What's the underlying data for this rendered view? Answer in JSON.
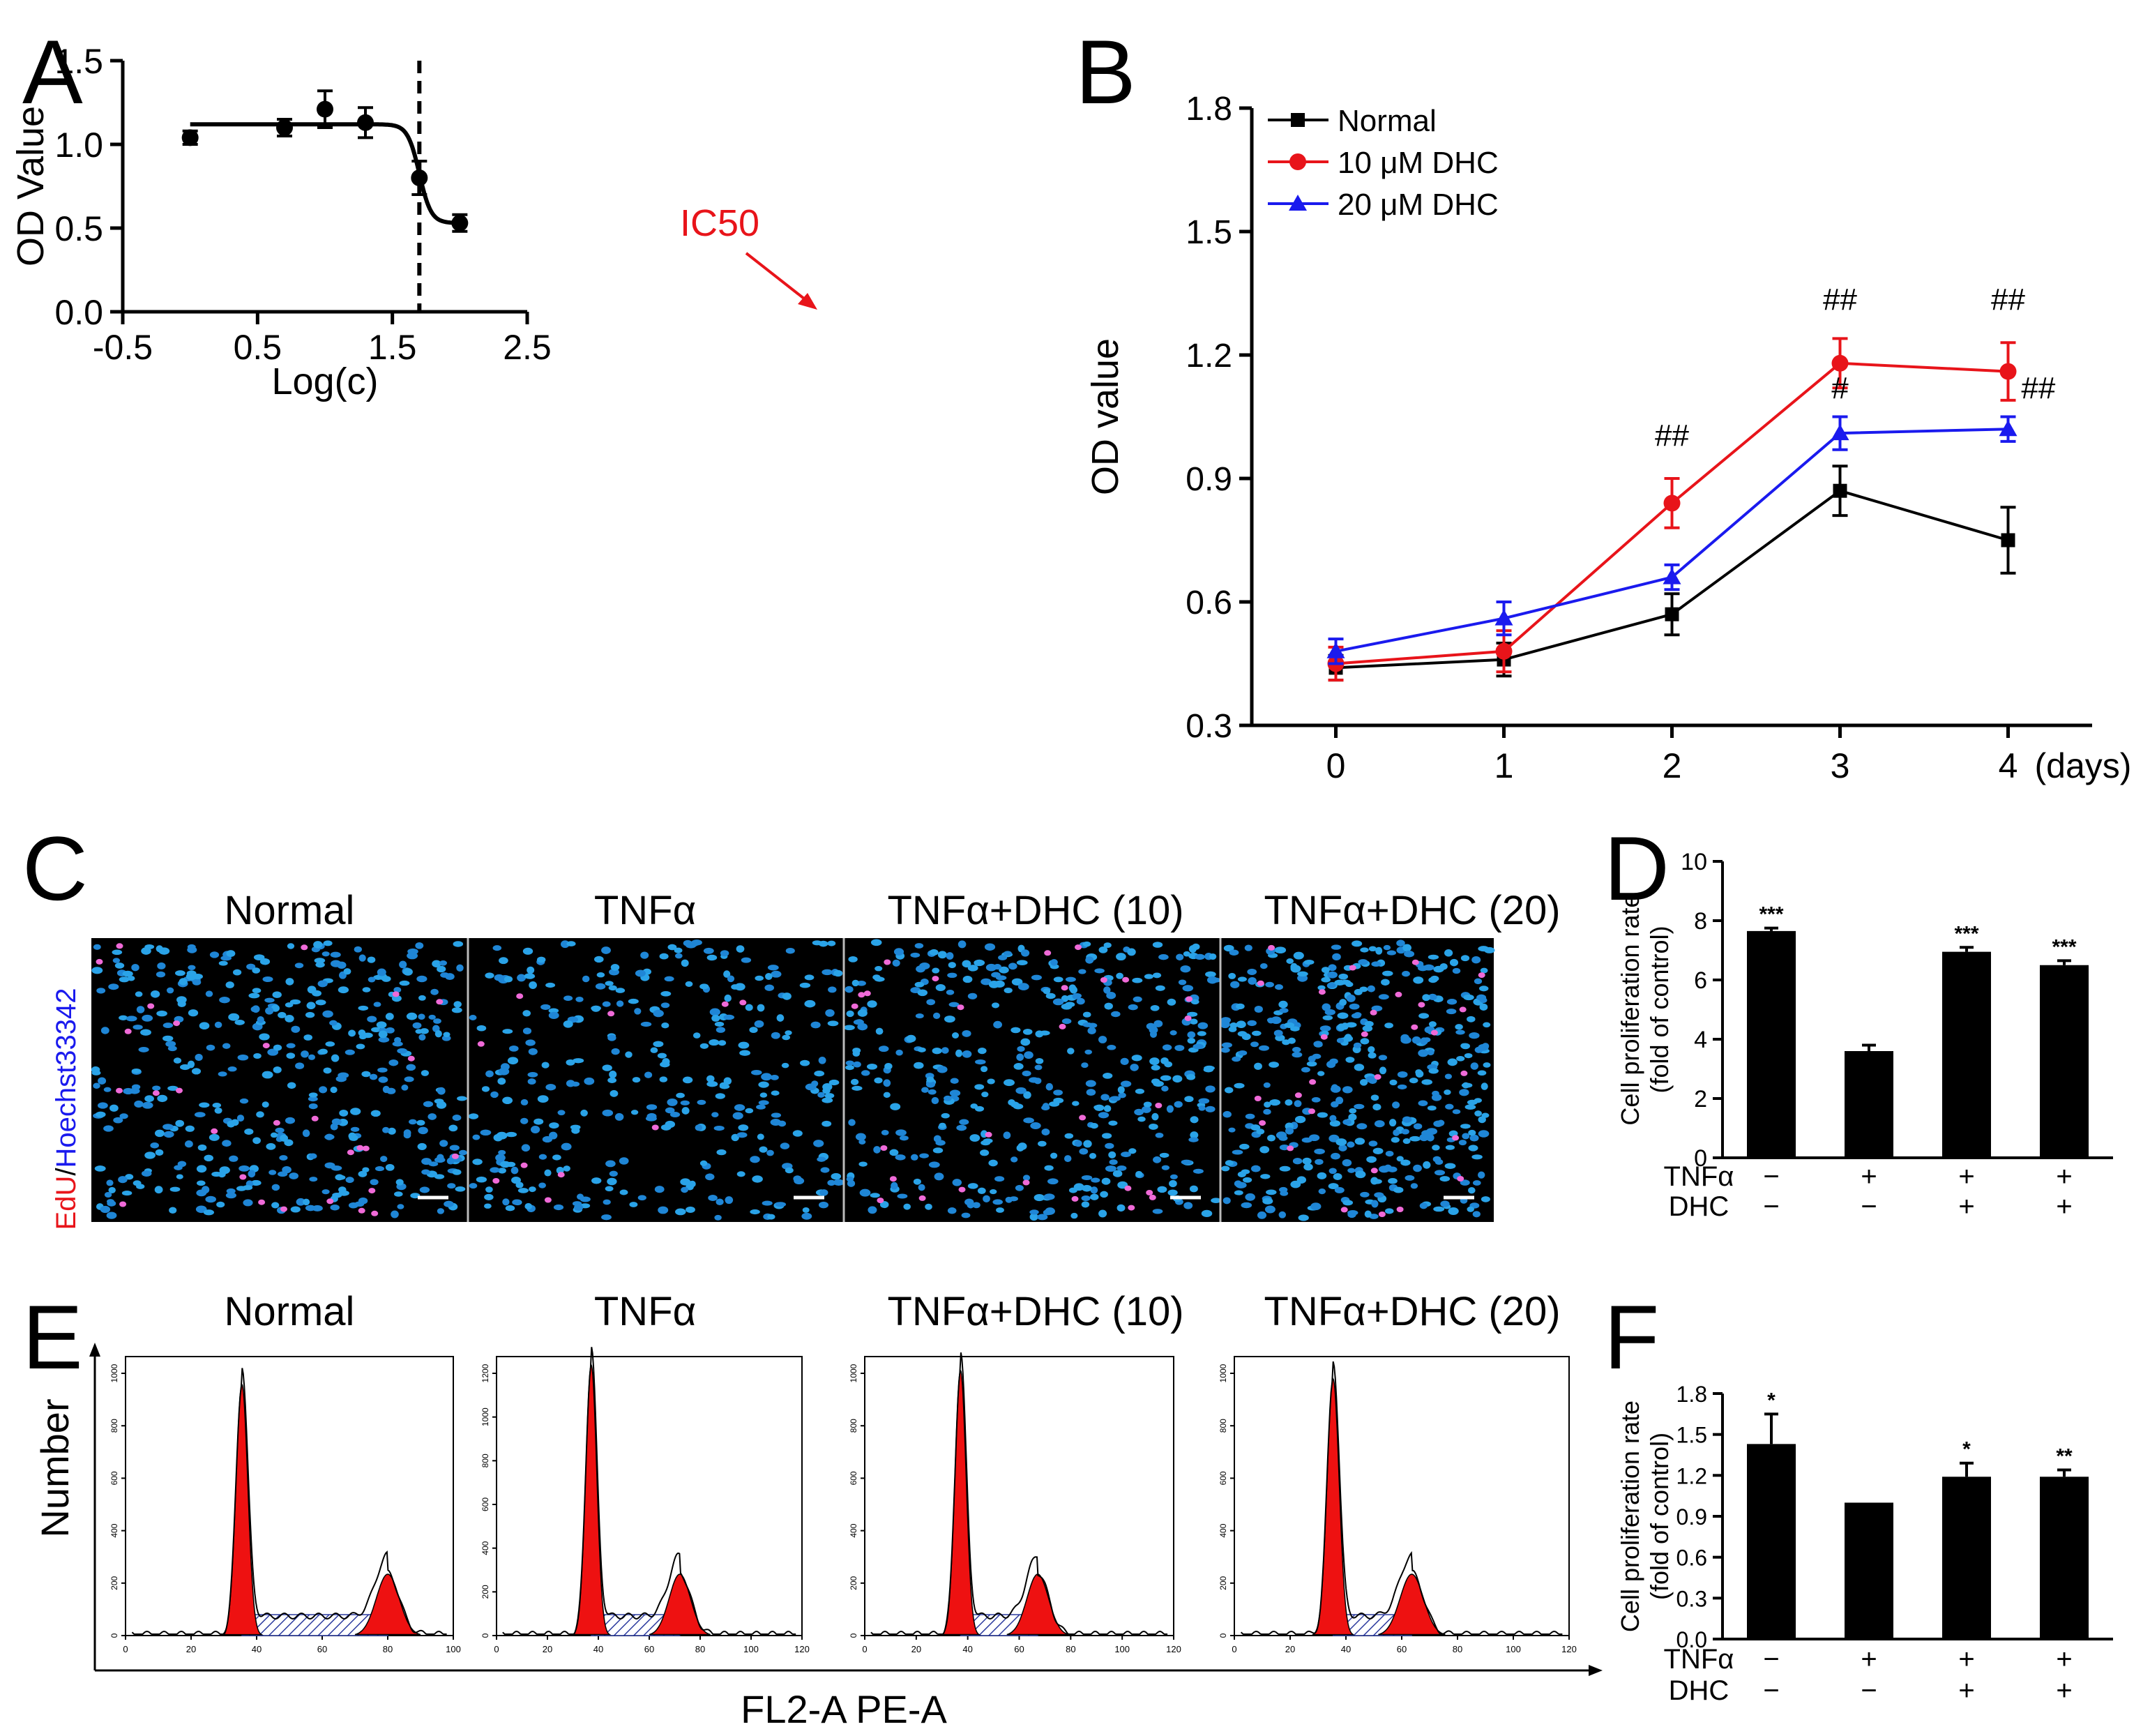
{
  "panel_letters": [
    "A",
    "B",
    "C",
    "D",
    "E",
    "F"
  ],
  "panel_c": {
    "titles": [
      "Normal",
      "TNFα",
      "TNFα+DHC (10)",
      "TNFα+DHC (20)"
    ],
    "ylabel_red": "EdU",
    "ylabel_sep": "/",
    "ylabel_blue": "Hoechst33342"
  },
  "panel_e": {
    "titles": [
      "Normal",
      "TNFα",
      "TNFα+DHC (10)",
      "TNFα+DHC (20)"
    ],
    "ylabel": "Number",
    "xlabel": "FL2-A PE-A",
    "hist_x_ticks": [
      [
        "0",
        "20",
        "40",
        "60",
        "80",
        "100"
      ],
      [
        "0",
        "20",
        "40",
        "60",
        "80",
        "100",
        "120"
      ],
      [
        "0",
        "20",
        "40",
        "60",
        "80",
        "100",
        "120"
      ],
      [
        "0",
        "20",
        "40",
        "60",
        "80",
        "100",
        "120"
      ]
    ],
    "hist_y_ticks": [
      [
        "0",
        "200",
        "400",
        "600",
        "800",
        "1000"
      ],
      [
        "0",
        "200",
        "400",
        "600",
        "800",
        "1000",
        "1200"
      ],
      [
        "0",
        "200",
        "400",
        "600",
        "800",
        "1000"
      ],
      [
        "0",
        "200",
        "400",
        "600",
        "800",
        "1000"
      ]
    ]
  },
  "chart_data": [
    {
      "panel": "A",
      "type": "scatter",
      "xlabel": "Log(c)",
      "ylabel": "OD Value",
      "xlim": [
        -0.5,
        2.5
      ],
      "ylim": [
        0.0,
        1.5
      ],
      "xticks": [
        "-0.5",
        "0.5",
        "1.5",
        "2.5"
      ],
      "yticks": [
        "0.0",
        "0.5",
        "1.0",
        "1.5"
      ],
      "x": [
        0.0,
        0.7,
        1.0,
        1.3,
        1.7,
        2.0
      ],
      "y": [
        1.04,
        1.1,
        1.21,
        1.13,
        0.8,
        0.53
      ],
      "error": [
        0.04,
        0.05,
        0.11,
        0.09,
        0.1,
        0.05
      ],
      "fit": {
        "top": 1.12,
        "bottom": 0.53,
        "log_ic50": 1.7,
        "hill": 10
      },
      "vline_x": 1.7,
      "annotation": "IC50",
      "annotation_color": "#e8141a"
    },
    {
      "panel": "B",
      "type": "line",
      "ylabel": "OD value",
      "ylim": [
        0.3,
        1.8
      ],
      "xlim": [
        -0.5,
        4.5
      ],
      "xticks": [
        "0",
        "1",
        "2",
        "3",
        "4"
      ],
      "x_unit": "(days)",
      "yticks": [
        "0.3",
        "0.6",
        "0.9",
        "1.2",
        "1.5",
        "1.8"
      ],
      "x": [
        0,
        1,
        2,
        3,
        4
      ],
      "series": [
        {
          "name": "Normal",
          "color": "#000000",
          "marker": "square",
          "values": [
            0.44,
            0.46,
            0.57,
            0.87,
            0.75
          ],
          "error": [
            0.03,
            0.04,
            0.05,
            0.06,
            0.08
          ]
        },
        {
          "name": "10 μM DHC",
          "color": "#e8141a",
          "marker": "circle",
          "values": [
            0.45,
            0.48,
            0.84,
            1.18,
            1.16
          ],
          "error": [
            0.04,
            0.05,
            0.06,
            0.06,
            0.07
          ]
        },
        {
          "name": "20 μM DHC",
          "color": "#1a1aee",
          "marker": "triangle",
          "values": [
            0.48,
            0.56,
            0.66,
            1.01,
            1.02
          ],
          "error": [
            0.03,
            0.04,
            0.03,
            0.04,
            0.03
          ]
        }
      ],
      "annotations": [
        {
          "text": "##",
          "x": 2,
          "y": 0.98
        },
        {
          "text": "##",
          "x": 3,
          "y": 1.31
        },
        {
          "text": "#",
          "x": 3,
          "y": 1.095
        },
        {
          "text": "##",
          "x": 4,
          "y": 1.31
        },
        {
          "text": "##",
          "x": 4.18,
          "y": 1.095
        }
      ]
    },
    {
      "panel": "D",
      "type": "bar",
      "ylabel_lines": [
        "Cell proliferation rate",
        "(fold of control)"
      ],
      "ylim": [
        0,
        10
      ],
      "yticks": [
        "0",
        "2",
        "4",
        "6",
        "8",
        "10"
      ],
      "categories": [
        "1",
        "2",
        "3",
        "4"
      ],
      "values": [
        7.65,
        3.6,
        6.95,
        6.5
      ],
      "error": [
        0.1,
        0.2,
        0.15,
        0.15
      ],
      "significance": [
        "***",
        "",
        "***",
        "***"
      ],
      "row_labels": [
        "TNFα",
        "DHC"
      ],
      "row_signs": [
        [
          "−",
          "+",
          "+",
          "+"
        ],
        [
          "−",
          "−",
          "+",
          "+"
        ]
      ]
    },
    {
      "panel": "F",
      "type": "bar",
      "ylabel_lines": [
        "Cell proliferation rate",
        "(fold of control)"
      ],
      "ylim": [
        0,
        1.8
      ],
      "yticks": [
        "0.0",
        "0.3",
        "0.6",
        "0.9",
        "1.2",
        "1.5",
        "1.8"
      ],
      "categories": [
        "1",
        "2",
        "3",
        "4"
      ],
      "values": [
        1.43,
        1.0,
        1.19,
        1.19
      ],
      "error": [
        0.22,
        0,
        0.1,
        0.05
      ],
      "significance": [
        "*",
        "",
        "*",
        "**"
      ],
      "row_labels": [
        "TNFα",
        "DHC"
      ],
      "row_signs": [
        [
          "−",
          "+",
          "+",
          "+"
        ],
        [
          "−",
          "−",
          "+",
          "+"
        ]
      ]
    }
  ]
}
